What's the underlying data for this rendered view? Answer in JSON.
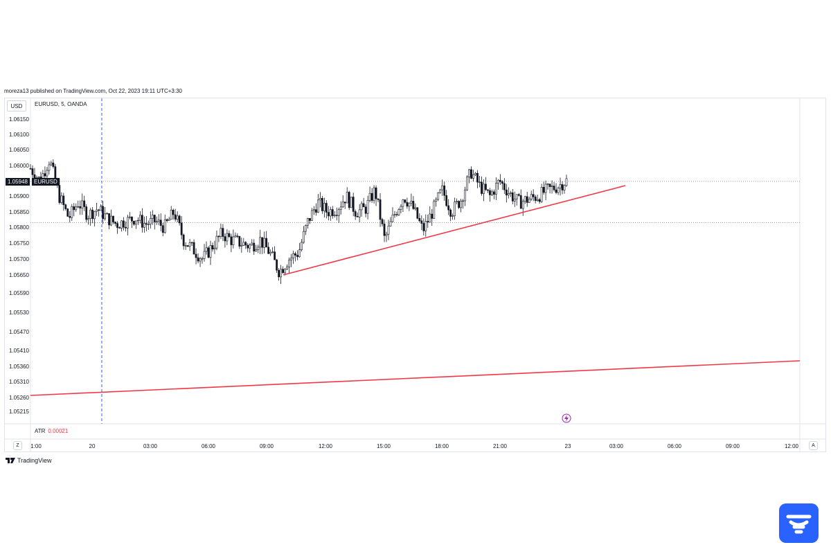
{
  "published": "moreza13 published on TradingView.com, Oct 22, 2023 19:11 UTC+3:30",
  "symbol_line": "EURUSD, 5, OANDA",
  "currency": "USD",
  "price_tag": "1.05948",
  "price_tag_symbol": "EURUSD",
  "atr_label": "ATR",
  "atr_value": "0.00021",
  "footer_brand": "TradingView",
  "buttons": {
    "left": "Z",
    "right": "A"
  },
  "colors": {
    "trendline": "#f23645",
    "candle": "#131722",
    "dashed": "#2962ff",
    "atr": "#f23645",
    "badge": "#2962ff"
  },
  "chart_data": {
    "type": "candlestick",
    "y_ticks": [
      1.0615,
      1.061,
      1.0605,
      1.06,
      1.059,
      1.0585,
      1.058,
      1.0575,
      1.057,
      1.0565,
      1.0559,
      1.0553,
      1.0547,
      1.0541,
      1.0536,
      1.0531,
      1.0526,
      1.05215
    ],
    "y_tick_labels": [
      "1.06150",
      "1.06100",
      "1.06050",
      "1.06000",
      "1.05900",
      "1.05850",
      "1.05800",
      "1.05750",
      "1.05700",
      "1.05650",
      "1.05590",
      "1.05530",
      "1.05470",
      "1.05410",
      "1.05360",
      "1.05310",
      "1.05260",
      "1.05215"
    ],
    "x_tick_labels": [
      "1:00",
      "20",
      "03:00",
      "06:00",
      "09:00",
      "12:00",
      "15:00",
      "18:00",
      "21:00",
      "23",
      "03:00",
      "06:00",
      "09:00",
      "12:00"
    ],
    "current_price": 1.05948,
    "horizontal_levels": [
      1.05948,
      1.05815
    ],
    "trendlines": [
      {
        "from": [
          "09:30",
          1.0565
        ],
        "to": [
          "02:00 (23)",
          1.0596
        ]
      },
      {
        "from": [
          "1:00",
          1.0527
        ],
        "to": [
          "13:00 (23)",
          1.0537
        ]
      }
    ],
    "series_path": [
      1.0599,
      1.0595,
      1.0602,
      1.059,
      1.0583,
      1.0588,
      1.0584,
      1.0586,
      1.0583,
      1.0581,
      1.0582,
      1.0583,
      1.0581,
      1.0582,
      1.058,
      1.0585,
      1.0576,
      1.0573,
      1.057,
      1.0574,
      1.0578,
      1.0576,
      1.0575,
      1.0574,
      1.0576,
      1.0572,
      1.0566,
      1.057,
      1.0572,
      1.0582,
      1.0588,
      1.0585,
      1.0586,
      1.059,
      1.0585,
      1.0586,
      1.0592,
      1.0576,
      1.0584,
      1.059,
      1.0586,
      1.0579,
      1.0585,
      1.0592,
      1.0585,
      1.0589,
      1.0598,
      1.0593,
      1.059,
      1.0595,
      1.0591,
      1.0588,
      1.0589,
      1.059,
      1.0592,
      1.0593,
      1.0595
    ]
  }
}
